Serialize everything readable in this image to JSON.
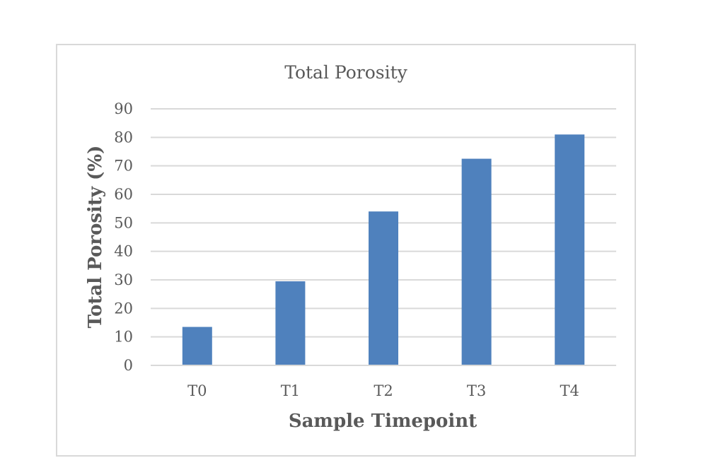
{
  "chart_data": {
    "type": "bar",
    "title": "Total Porosity",
    "xlabel": "Sample Timepoint",
    "ylabel": "Total Porosity (%)",
    "categories": [
      "T0",
      "T1",
      "T2",
      "T3",
      "T4"
    ],
    "values": [
      13.5,
      29.5,
      54,
      72.5,
      81
    ],
    "ylim": [
      0,
      90
    ],
    "yticks": [
      "0",
      "10",
      "20",
      "30",
      "40",
      "50",
      "60",
      "70",
      "80",
      "90"
    ],
    "grid": true,
    "legend": "none",
    "bar_color": "#4f81bd"
  }
}
